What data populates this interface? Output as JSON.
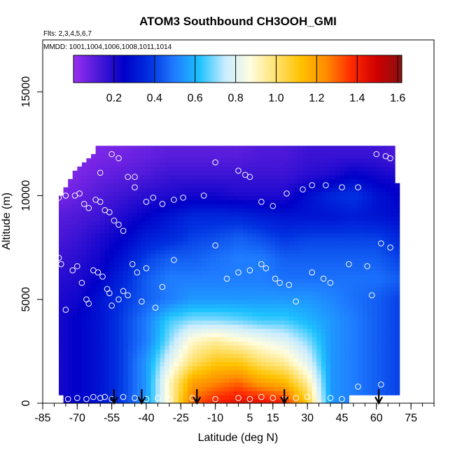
{
  "chart_data": {
    "type": "heatmap",
    "title": "ATOM3 Southbound CH3OOH_GMI",
    "flights_note": "Flts: 2,3,4,5,6,7",
    "dates_note": "MMDD: 1001,1004,1006,1008,1011,1014",
    "xlabel": "Latitude (deg N)",
    "ylabel": "Altitude (m)",
    "xlim": [
      -85,
      85
    ],
    "ylim": [
      0,
      17500
    ],
    "x_ticks": [
      -85,
      -70,
      -55,
      -40,
      -25,
      -10,
      5,
      15,
      30,
      45,
      60,
      75
    ],
    "y_ticks": [
      0,
      5000,
      10000,
      15000
    ],
    "colorbar": {
      "min": 0.0,
      "max": 1.62,
      "ticks": [
        0.2,
        0.4,
        0.6,
        0.8,
        1.0,
        1.2,
        1.4,
        1.6
      ],
      "colors": [
        "#9a2ff0",
        "#4a18d8",
        "#0000c8",
        "#0030e0",
        "#1f7cff",
        "#1ec2ff",
        "#c8ecff",
        "#fffde0",
        "#ffe270",
        "#ffc200",
        "#ff8c00",
        "#ff2a00",
        "#d00000",
        "#8a1010"
      ]
    },
    "lat_nodes": [
      -80,
      -70,
      -60,
      -50,
      -40,
      -30,
      -20,
      -10,
      0,
      10,
      20,
      30,
      40,
      50,
      60,
      70
    ],
    "alt_nodes": [
      0,
      1000,
      2000,
      3000,
      4000,
      5000,
      6000,
      7000,
      8000,
      9000,
      10000,
      11000,
      12000
    ],
    "field": [
      [
        0.2,
        0.25,
        0.3,
        0.4,
        0.55,
        0.9,
        1.3,
        1.4,
        1.45,
        1.45,
        1.4,
        1.1,
        0.55,
        0.5,
        0.45,
        0.4
      ],
      [
        0.2,
        0.25,
        0.3,
        0.4,
        0.55,
        0.9,
        1.2,
        1.25,
        1.3,
        1.2,
        1.15,
        0.95,
        0.55,
        0.5,
        0.45,
        0.4
      ],
      [
        0.2,
        0.25,
        0.3,
        0.4,
        0.55,
        0.8,
        1.0,
        1.1,
        1.1,
        1.0,
        0.95,
        0.8,
        0.55,
        0.5,
        0.45,
        0.4
      ],
      [
        0.2,
        0.25,
        0.3,
        0.4,
        0.5,
        0.7,
        0.9,
        0.95,
        0.9,
        0.85,
        0.8,
        0.7,
        0.55,
        0.5,
        0.45,
        0.4
      ],
      [
        0.2,
        0.25,
        0.3,
        0.4,
        0.5,
        0.65,
        0.7,
        0.7,
        0.68,
        0.65,
        0.65,
        0.6,
        0.55,
        0.5,
        0.45,
        0.4
      ],
      [
        0.2,
        0.22,
        0.3,
        0.38,
        0.45,
        0.5,
        0.55,
        0.55,
        0.55,
        0.55,
        0.55,
        0.55,
        0.52,
        0.48,
        0.45,
        0.4
      ],
      [
        0.18,
        0.2,
        0.25,
        0.35,
        0.45,
        0.5,
        0.5,
        0.5,
        0.5,
        0.5,
        0.48,
        0.48,
        0.48,
        0.48,
        0.48,
        0.45
      ],
      [
        0.15,
        0.18,
        0.22,
        0.3,
        0.4,
        0.45,
        0.45,
        0.48,
        0.5,
        0.5,
        0.45,
        0.45,
        0.45,
        0.45,
        0.45,
        0.4
      ],
      [
        0.12,
        0.15,
        0.2,
        0.25,
        0.32,
        0.35,
        0.4,
        0.42,
        0.45,
        0.42,
        0.38,
        0.4,
        0.4,
        0.4,
        0.4,
        0.35
      ],
      [
        0.1,
        0.12,
        0.15,
        0.2,
        0.25,
        0.3,
        0.35,
        0.35,
        0.35,
        0.32,
        0.3,
        0.3,
        0.3,
        0.32,
        0.3,
        0.28
      ],
      [
        0.05,
        0.08,
        0.12,
        0.15,
        0.18,
        0.2,
        0.22,
        0.22,
        0.2,
        0.2,
        0.2,
        0.28,
        0.35,
        0.38,
        0.3,
        0.25
      ],
      [
        0.02,
        0.05,
        0.08,
        0.1,
        0.12,
        0.15,
        0.15,
        0.15,
        0.15,
        0.15,
        0.15,
        0.18,
        0.2,
        0.25,
        0.22,
        0.2
      ],
      [
        0.02,
        0.03,
        0.05,
        0.06,
        0.08,
        0.1,
        0.1,
        0.1,
        0.1,
        0.12,
        0.12,
        0.15,
        0.15,
        0.15,
        0.15,
        0.12
      ]
    ],
    "coverage": {
      "left_edge_lat": [
        -78,
        -78,
        -78,
        -78,
        -78,
        -78,
        -78,
        -78,
        -78,
        -78,
        -77,
        -72,
        -62
      ],
      "right_edge_lat": [
        68,
        70,
        70,
        70,
        70,
        70,
        70,
        70,
        70,
        70,
        70,
        68,
        67
      ],
      "top_alt": 12400
    },
    "surface_strip": {
      "alt_max": 500,
      "lat_min": -75,
      "lat_max": 48
    },
    "arrows_lat": [
      -54,
      -42,
      -18,
      20,
      61
    ],
    "observations": [
      [
        -78,
        7000
      ],
      [
        -77,
        6700
      ],
      [
        -75,
        4500
      ],
      [
        -72,
        6400
      ],
      [
        -70,
        6600
      ],
      [
        -68,
        5800
      ],
      [
        -66,
        5000
      ],
      [
        -65,
        4800
      ],
      [
        -63,
        6400
      ],
      [
        -61,
        6300
      ],
      [
        -59,
        6100
      ],
      [
        -57,
        5500
      ],
      [
        -56,
        5300
      ],
      [
        -55,
        4700
      ],
      [
        -52,
        5000
      ],
      [
        -50,
        5400
      ],
      [
        -48,
        5200
      ],
      [
        -46,
        6700
      ],
      [
        -44,
        6300
      ],
      [
        -42,
        4900
      ],
      [
        -40,
        6500
      ],
      [
        -36,
        4600
      ],
      [
        -33,
        5600
      ],
      [
        -78,
        9900
      ],
      [
        -75,
        10000
      ],
      [
        -71,
        10000
      ],
      [
        -69,
        10100
      ],
      [
        -67,
        9600
      ],
      [
        -65,
        9400
      ],
      [
        -62,
        9800
      ],
      [
        -60,
        9700
      ],
      [
        -58,
        9300
      ],
      [
        -56,
        9200
      ],
      [
        -54,
        8800
      ],
      [
        -52,
        8600
      ],
      [
        -50,
        8300
      ],
      [
        -45,
        10400
      ],
      [
        -40,
        9700
      ],
      [
        -37,
        9900
      ],
      [
        -33,
        9600
      ],
      [
        -28,
        9800
      ],
      [
        -24,
        9900
      ],
      [
        -15,
        10000
      ],
      [
        -10,
        11600
      ],
      [
        0,
        11200
      ],
      [
        3,
        11000
      ],
      [
        5,
        10900
      ],
      [
        10,
        9700
      ],
      [
        15,
        9500
      ],
      [
        21,
        10100
      ],
      [
        28,
        10300
      ],
      [
        -60,
        11100
      ],
      [
        -55,
        12000
      ],
      [
        -52,
        11800
      ],
      [
        -48,
        10900
      ],
      [
        -45,
        10900
      ],
      [
        -28,
        6900
      ],
      [
        -10,
        7600
      ],
      [
        -5,
        6000
      ],
      [
        0,
        6300
      ],
      [
        5,
        6400
      ],
      [
        10,
        6700
      ],
      [
        12,
        6500
      ],
      [
        16,
        6000
      ],
      [
        18,
        5800
      ],
      [
        22,
        5700
      ],
      [
        25,
        4900
      ],
      [
        32,
        6300
      ],
      [
        37,
        6000
      ],
      [
        40,
        5800
      ],
      [
        48,
        6700
      ],
      [
        56,
        6600
      ],
      [
        58,
        5200
      ],
      [
        62,
        7700
      ],
      [
        66,
        7500
      ],
      [
        32,
        10500
      ],
      [
        38,
        10500
      ],
      [
        45,
        10400
      ],
      [
        52,
        10400
      ],
      [
        60,
        12000
      ],
      [
        64,
        11900
      ],
      [
        66,
        11800
      ],
      [
        -74,
        200
      ],
      [
        -70,
        250
      ],
      [
        -66,
        200
      ],
      [
        -63,
        300
      ],
      [
        -60,
        250
      ],
      [
        -58,
        300
      ],
      [
        -55,
        200
      ],
      [
        -50,
        300
      ],
      [
        -45,
        250
      ],
      [
        -40,
        200
      ],
      [
        -35,
        250
      ],
      [
        -30,
        200
      ],
      [
        -20,
        250
      ],
      [
        -10,
        200
      ],
      [
        0,
        250
      ],
      [
        5,
        200
      ],
      [
        10,
        300
      ],
      [
        15,
        250
      ],
      [
        20,
        200
      ],
      [
        25,
        250
      ],
      [
        30,
        300
      ],
      [
        40,
        250
      ],
      [
        45,
        200
      ],
      [
        52,
        800
      ],
      [
        62,
        900
      ],
      [
        72,
        1300
      ]
    ]
  }
}
